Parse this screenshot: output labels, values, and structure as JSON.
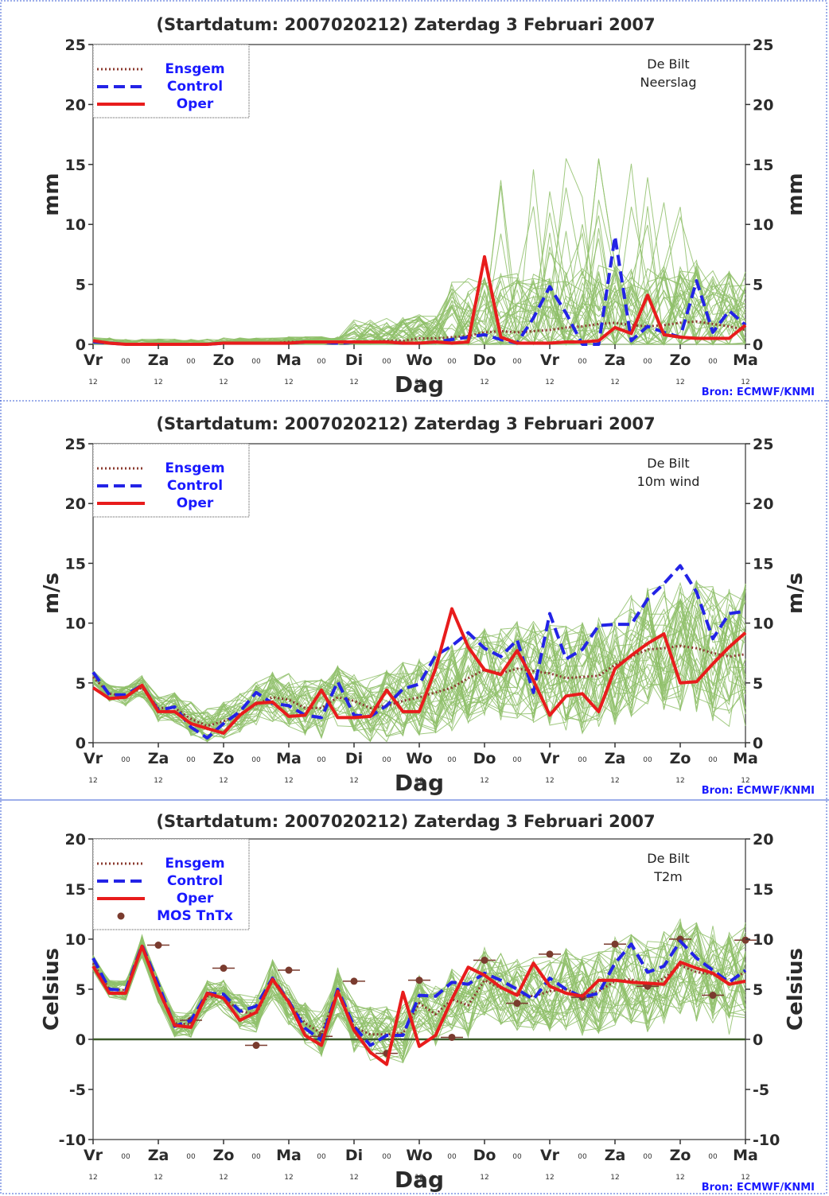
{
  "page": {
    "source_label": "Bron: ECMWF/KNMI"
  },
  "colors": {
    "ensgem": "#8b3a2f",
    "control": "#2323e6",
    "oper": "#e81c1c",
    "members": "#8fbf6a",
    "mos": "#7a3b2e",
    "axis": "#333333",
    "zero_line": "#3c5a2a"
  },
  "x_axis": {
    "label": "Dag",
    "day_labels": [
      "Vr",
      "Za",
      "Zo",
      "Ma",
      "Di",
      "Wo",
      "Do",
      "Vr",
      "Za",
      "Zo",
      "Ma"
    ],
    "midnight_label": "00",
    "hour_label": "12"
  },
  "chart_data": [
    {
      "type": "line",
      "title": "(Startdatum: 2007020212)   Zaterdag   3 Februari  2007",
      "station": "De Bilt",
      "variable": "Neerslag",
      "ylabel": "mm",
      "xlabel": "Dag",
      "ylim": [
        0,
        25
      ],
      "yticks": [
        0,
        5,
        10,
        15,
        20,
        25
      ],
      "x": [
        0,
        0.25,
        0.5,
        0.75,
        1,
        1.25,
        1.5,
        1.75,
        2,
        2.25,
        2.5,
        2.75,
        3,
        3.25,
        3.5,
        3.75,
        4,
        4.25,
        4.5,
        4.75,
        5,
        5.25,
        5.5,
        5.75,
        6,
        6.25,
        6.5,
        6.75,
        7,
        7.25,
        7.5,
        7.75,
        8,
        8.25,
        8.5,
        8.75,
        9,
        9.25,
        9.5,
        9.75,
        10
      ],
      "legend": [
        "Ensgem",
        "Control",
        "Oper"
      ],
      "legend_position": "top-left",
      "series": [
        {
          "name": "Ensgem",
          "style": "dotted",
          "values": [
            0.2,
            0.1,
            0,
            0,
            0,
            0,
            0,
            0,
            0.1,
            0.1,
            0.1,
            0.1,
            0.2,
            0.2,
            0.2,
            0.2,
            0.2,
            0.2,
            0.3,
            0.3,
            0.5,
            0.5,
            0.6,
            0.7,
            1.0,
            1.1,
            1.0,
            1.1,
            1.2,
            1.4,
            1.5,
            1.7,
            1.8,
            1.6,
            1.5,
            1.6,
            1.8,
            1.9,
            1.7,
            1.5,
            1.2
          ]
        },
        {
          "name": "Control",
          "style": "dashed",
          "values": [
            0.2,
            0.1,
            0,
            0,
            0,
            0,
            0,
            0,
            0.1,
            0.1,
            0.1,
            0.1,
            0.1,
            0.2,
            0.2,
            0.1,
            0.2,
            0.2,
            0.2,
            0.1,
            0.1,
            0.2,
            0.4,
            0.6,
            0.8,
            0.4,
            0.1,
            2.2,
            4.8,
            2.6,
            0,
            0,
            9.0,
            0.3,
            1.5,
            1.0,
            0.6,
            5.3,
            1.0,
            2.8,
            1.6
          ]
        },
        {
          "name": "Oper",
          "style": "solid",
          "values": [
            0.3,
            0.1,
            0,
            0,
            0,
            0,
            0,
            0,
            0.1,
            0.1,
            0.1,
            0.1,
            0.1,
            0.2,
            0.2,
            0.2,
            0.2,
            0.2,
            0.2,
            0.1,
            0.1,
            0.2,
            0.1,
            0.2,
            7.3,
            0.6,
            0.1,
            0.1,
            0.1,
            0.2,
            0.2,
            0.3,
            1.4,
            0.9,
            4.1,
            0.8,
            0.6,
            0.5,
            0.5,
            0.5,
            1.6
          ]
        }
      ],
      "members": {
        "count": 50,
        "values_shown": "ensemble spread, 0 to 15.5 mm"
      }
    },
    {
      "type": "line",
      "title": "(Startdatum: 2007020212)   Zaterdag   3 Februari  2007",
      "station": "De Bilt",
      "variable": "10m wind",
      "ylabel": "m/s",
      "xlabel": "Dag",
      "ylim": [
        0,
        25
      ],
      "yticks": [
        0,
        5,
        10,
        15,
        20,
        25
      ],
      "x": [
        0,
        0.25,
        0.5,
        0.75,
        1,
        1.25,
        1.5,
        1.75,
        2,
        2.25,
        2.5,
        2.75,
        3,
        3.25,
        3.5,
        3.75,
        4,
        4.25,
        4.5,
        4.75,
        5,
        5.25,
        5.5,
        5.75,
        6,
        6.25,
        6.5,
        6.75,
        7,
        7.25,
        7.5,
        7.75,
        8,
        8.25,
        8.5,
        8.75,
        9,
        9.25,
        9.5,
        9.75,
        10
      ],
      "legend": [
        "Ensgem",
        "Control",
        "Oper"
      ],
      "legend_position": "top-left",
      "series": [
        {
          "name": "Ensgem",
          "style": "dotted",
          "values": [
            5.5,
            4.1,
            3.9,
            4.6,
            2.9,
            2.9,
            2.0,
            1.4,
            1.8,
            2.4,
            3.2,
            3.8,
            3.6,
            2.9,
            2.9,
            3.8,
            3.5,
            2.9,
            3.1,
            3.5,
            3.8,
            4.2,
            4.6,
            5.4,
            6.1,
            5.8,
            6.2,
            6.0,
            5.8,
            5.4,
            5.5,
            5.6,
            6.5,
            7.2,
            7.8,
            7.9,
            8.1,
            7.9,
            7.5,
            7.2,
            7.4
          ]
        },
        {
          "name": "Control",
          "style": "dashed",
          "values": [
            5.9,
            4.0,
            4.0,
            4.8,
            2.7,
            3.0,
            1.3,
            0.4,
            1.6,
            2.6,
            4.2,
            3.3,
            3.1,
            2.3,
            2.1,
            5.1,
            2.3,
            2.2,
            3.1,
            4.5,
            4.9,
            7.3,
            8.1,
            9.2,
            7.9,
            7.2,
            8.6,
            4.2,
            10.8,
            7.0,
            7.8,
            9.8,
            9.9,
            9.9,
            12.0,
            13.3,
            14.8,
            12.6,
            8.7,
            10.8,
            11.0
          ]
        },
        {
          "name": "Oper",
          "style": "solid",
          "values": [
            4.6,
            3.7,
            3.8,
            4.8,
            2.6,
            2.6,
            1.6,
            1.2,
            0.8,
            2.3,
            3.3,
            3.4,
            2.2,
            2.3,
            4.4,
            2.1,
            2.1,
            2.2,
            4.4,
            2.6,
            2.6,
            6.2,
            11.2,
            8.0,
            6.1,
            5.7,
            7.7,
            5.2,
            2.3,
            3.9,
            4.1,
            2.6,
            6.2,
            7.3,
            8.3,
            9.1,
            5.0,
            5.1,
            6.6,
            8.0,
            9.2
          ]
        }
      ],
      "members": {
        "count": 50,
        "values_shown": "ensemble spread, 0 to 16 m/s"
      }
    },
    {
      "type": "line",
      "title": "(Startdatum: 2007020212)   Zaterdag   3 Februari  2007",
      "station": "De Bilt",
      "variable": "T2m",
      "ylabel": "Celsius",
      "xlabel": "Dag",
      "ylim": [
        -10,
        20
      ],
      "yticks": [
        -10,
        -5,
        0,
        5,
        10,
        15,
        20
      ],
      "x": [
        0,
        0.25,
        0.5,
        0.75,
        1,
        1.25,
        1.5,
        1.75,
        2,
        2.25,
        2.5,
        2.75,
        3,
        3.25,
        3.5,
        3.75,
        4,
        4.25,
        4.5,
        4.75,
        5,
        5.25,
        5.5,
        5.75,
        6,
        6.25,
        6.5,
        6.75,
        7,
        7.25,
        7.5,
        7.75,
        8,
        8.25,
        8.5,
        8.75,
        9,
        9.25,
        9.5,
        9.75,
        10
      ],
      "legend": [
        "Ensgem",
        "Control",
        "Oper",
        "MOS TnTx"
      ],
      "legend_position": "top-left",
      "series": [
        {
          "name": "Ensgem",
          "style": "dotted",
          "values": [
            7.6,
            5.0,
            4.9,
            9.3,
            4.9,
            1.6,
            1.5,
            4.3,
            4.2,
            2.8,
            2.5,
            5.9,
            3.6,
            1.6,
            0.6,
            4.8,
            1.2,
            0.5,
            0.5,
            0.6,
            3.6,
            2.5,
            4.0,
            3.4,
            5.9,
            5.1,
            4.5,
            4.3,
            4.8,
            5.0,
            4.3,
            4.8,
            5.8,
            6.0,
            5.3,
            6.1,
            7.4,
            6.7,
            6.5,
            5.6,
            6.8
          ]
        },
        {
          "name": "Control",
          "style": "dashed",
          "values": [
            8.1,
            5.0,
            4.9,
            9.4,
            5.5,
            1.3,
            1.9,
            4.6,
            4.5,
            2.8,
            3.3,
            6.1,
            3.8,
            1.1,
            -0.1,
            5.0,
            1.3,
            -0.6,
            0.4,
            0.4,
            4.4,
            4.3,
            5.7,
            5.5,
            6.6,
            5.9,
            5.0,
            4.0,
            6.1,
            5.0,
            4.2,
            4.6,
            7.6,
            9.5,
            6.7,
            7.3,
            9.8,
            8.1,
            6.9,
            5.7,
            6.9
          ]
        },
        {
          "name": "Oper",
          "style": "solid",
          "values": [
            7.3,
            4.6,
            4.6,
            9.3,
            5.0,
            1.4,
            1.2,
            4.6,
            4.1,
            1.9,
            2.7,
            6.0,
            3.7,
            0.4,
            -0.6,
            4.8,
            0.9,
            -1.3,
            -2.5,
            4.7,
            -0.7,
            0.4,
            4.0,
            7.2,
            6.4,
            5.2,
            4.4,
            7.6,
            5.3,
            4.6,
            4.3,
            5.9,
            5.9,
            5.7,
            5.6,
            5.5,
            7.7,
            7.1,
            6.6,
            5.5,
            5.8
          ]
        }
      ],
      "mos_tntx": {
        "name": "MOS TnTx",
        "points": [
          {
            "x": 1.0,
            "y": 9.4
          },
          {
            "x": 1.5,
            "y": 1.9
          },
          {
            "x": 2.0,
            "y": 7.1
          },
          {
            "x": 2.5,
            "y": -0.6
          },
          {
            "x": 3.0,
            "y": 6.9
          },
          {
            "x": 3.5,
            "y": 0.3
          },
          {
            "x": 4.0,
            "y": 5.8
          },
          {
            "x": 4.5,
            "y": -1.4
          },
          {
            "x": 5.0,
            "y": 5.9
          },
          {
            "x": 5.5,
            "y": 0.2
          },
          {
            "x": 6.0,
            "y": 7.9
          },
          {
            "x": 6.5,
            "y": 3.6
          },
          {
            "x": 7.0,
            "y": 8.5
          },
          {
            "x": 7.5,
            "y": 4.2
          },
          {
            "x": 8.0,
            "y": 9.5
          },
          {
            "x": 8.5,
            "y": 5.3
          },
          {
            "x": 9.0,
            "y": 10.0
          },
          {
            "x": 9.5,
            "y": 4.4
          },
          {
            "x": 10.0,
            "y": 9.9
          }
        ]
      },
      "members": {
        "count": 50,
        "values_shown": "ensemble spread, -7 to 12 Celsius"
      }
    }
  ]
}
